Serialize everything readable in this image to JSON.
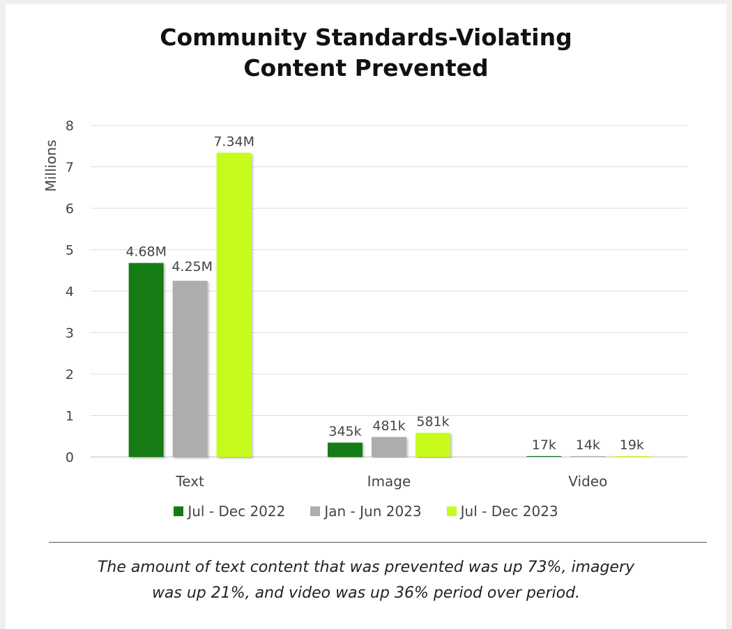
{
  "colors": {
    "series1": "#127c12",
    "series2": "#adadad",
    "series3": "#c6fb1e",
    "grid": "#dddddd",
    "axis": "#333333"
  },
  "chart_data": {
    "type": "bar",
    "title": "Community Standards-Violating Content Prevented",
    "title_lines": [
      "Community Standards-Violating",
      "Content Prevented"
    ],
    "ylabel": "Millions",
    "ylim": [
      0,
      8
    ],
    "yticks": [
      "0",
      "1",
      "2",
      "3",
      "4",
      "5",
      "6",
      "7",
      "8"
    ],
    "grid": true,
    "legend_position": "bottom",
    "categories": [
      "Text",
      "Image",
      "Video"
    ],
    "series": [
      {
        "name": "Jul - Dec 2022",
        "color": "#127c12",
        "values": [
          4.68,
          0.345,
          0.017
        ],
        "labels": [
          "4.68M",
          "345k",
          "17k"
        ]
      },
      {
        "name": "Jan - Jun 2023",
        "color": "#adadad",
        "values": [
          4.25,
          0.481,
          0.014
        ],
        "labels": [
          "4.25M",
          "481k",
          "14k"
        ]
      },
      {
        "name": "Jul - Dec 2023",
        "color": "#c6fb1e",
        "values": [
          7.34,
          0.581,
          0.019
        ],
        "labels": [
          "7.34M",
          "581k",
          "19k"
        ]
      }
    ]
  },
  "caption_lines": [
    "The amount of text content that was prevented was up 73%, imagery",
    "was up 21%, and video was up 36% period over period."
  ]
}
